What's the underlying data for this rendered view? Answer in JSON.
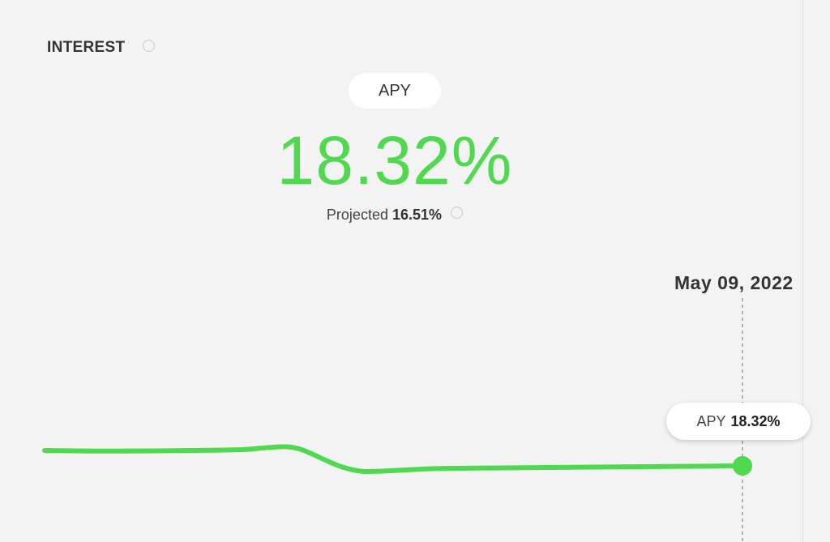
{
  "header": {
    "title": "INTEREST"
  },
  "rate": {
    "tab": "APY",
    "value": "18.32%",
    "projected_label": "Projected",
    "projected_value": "16.51%"
  },
  "chart": {
    "date": "May 09, 2022",
    "tooltip_label": "APY",
    "tooltip_value": "18.32%"
  }
}
